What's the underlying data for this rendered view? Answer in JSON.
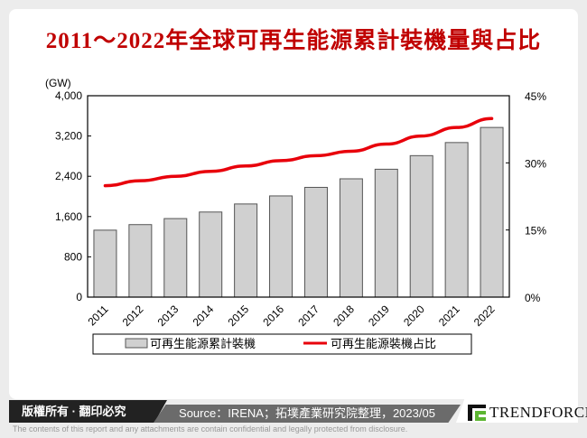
{
  "title": "2011～2022年全球可再生能源累計裝機量與占比",
  "chart_data": {
    "type": "bar+line",
    "title": "2011～2022年全球可再生能源累計裝機量與占比",
    "categories": [
      "2011",
      "2012",
      "2013",
      "2014",
      "2015",
      "2016",
      "2017",
      "2018",
      "2019",
      "2020",
      "2021",
      "2022"
    ],
    "series": [
      {
        "name": "可再生能源累計裝機",
        "type": "bar",
        "axis": "left",
        "color": "#d0d0d0",
        "values": [
          1330,
          1440,
          1560,
          1690,
          1850,
          2010,
          2180,
          2350,
          2540,
          2810,
          3070,
          3370
        ]
      },
      {
        "name": "可再生能源裝機占比",
        "type": "line",
        "axis": "right",
        "color": "#e8000b",
        "values": [
          24.9,
          26.0,
          27.0,
          28.1,
          29.3,
          30.5,
          31.6,
          32.6,
          34.2,
          36.0,
          37.9,
          39.9
        ]
      }
    ],
    "y_left": {
      "unit": "(GW)",
      "ylim": [
        0,
        4000
      ],
      "ticks": [
        "0",
        "800",
        "1,600",
        "2,400",
        "3,200",
        "4,000"
      ],
      "tick_values": [
        0,
        800,
        1600,
        2400,
        3200,
        4000
      ]
    },
    "y_right": {
      "ylim": [
        0,
        45
      ],
      "ticks": [
        "0%",
        "15%",
        "30%",
        "45%"
      ],
      "tick_values": [
        0,
        15,
        30,
        45
      ]
    },
    "grid": false,
    "legend_placement": "bottom"
  },
  "footer": {
    "copyright": "版權所有 · 翻印必究",
    "source": "Source：IRENA；拓墣產業研究院整理，2023/05",
    "brand": "TRENDFORCE",
    "disclaimer": "The contents of this report and any attachments are contain confidential and legally protected from disclosure."
  },
  "colors": {
    "title": "#c00000",
    "line": "#e8000b",
    "bar": "#d0d0d0",
    "logo_green": "#5cb531"
  }
}
